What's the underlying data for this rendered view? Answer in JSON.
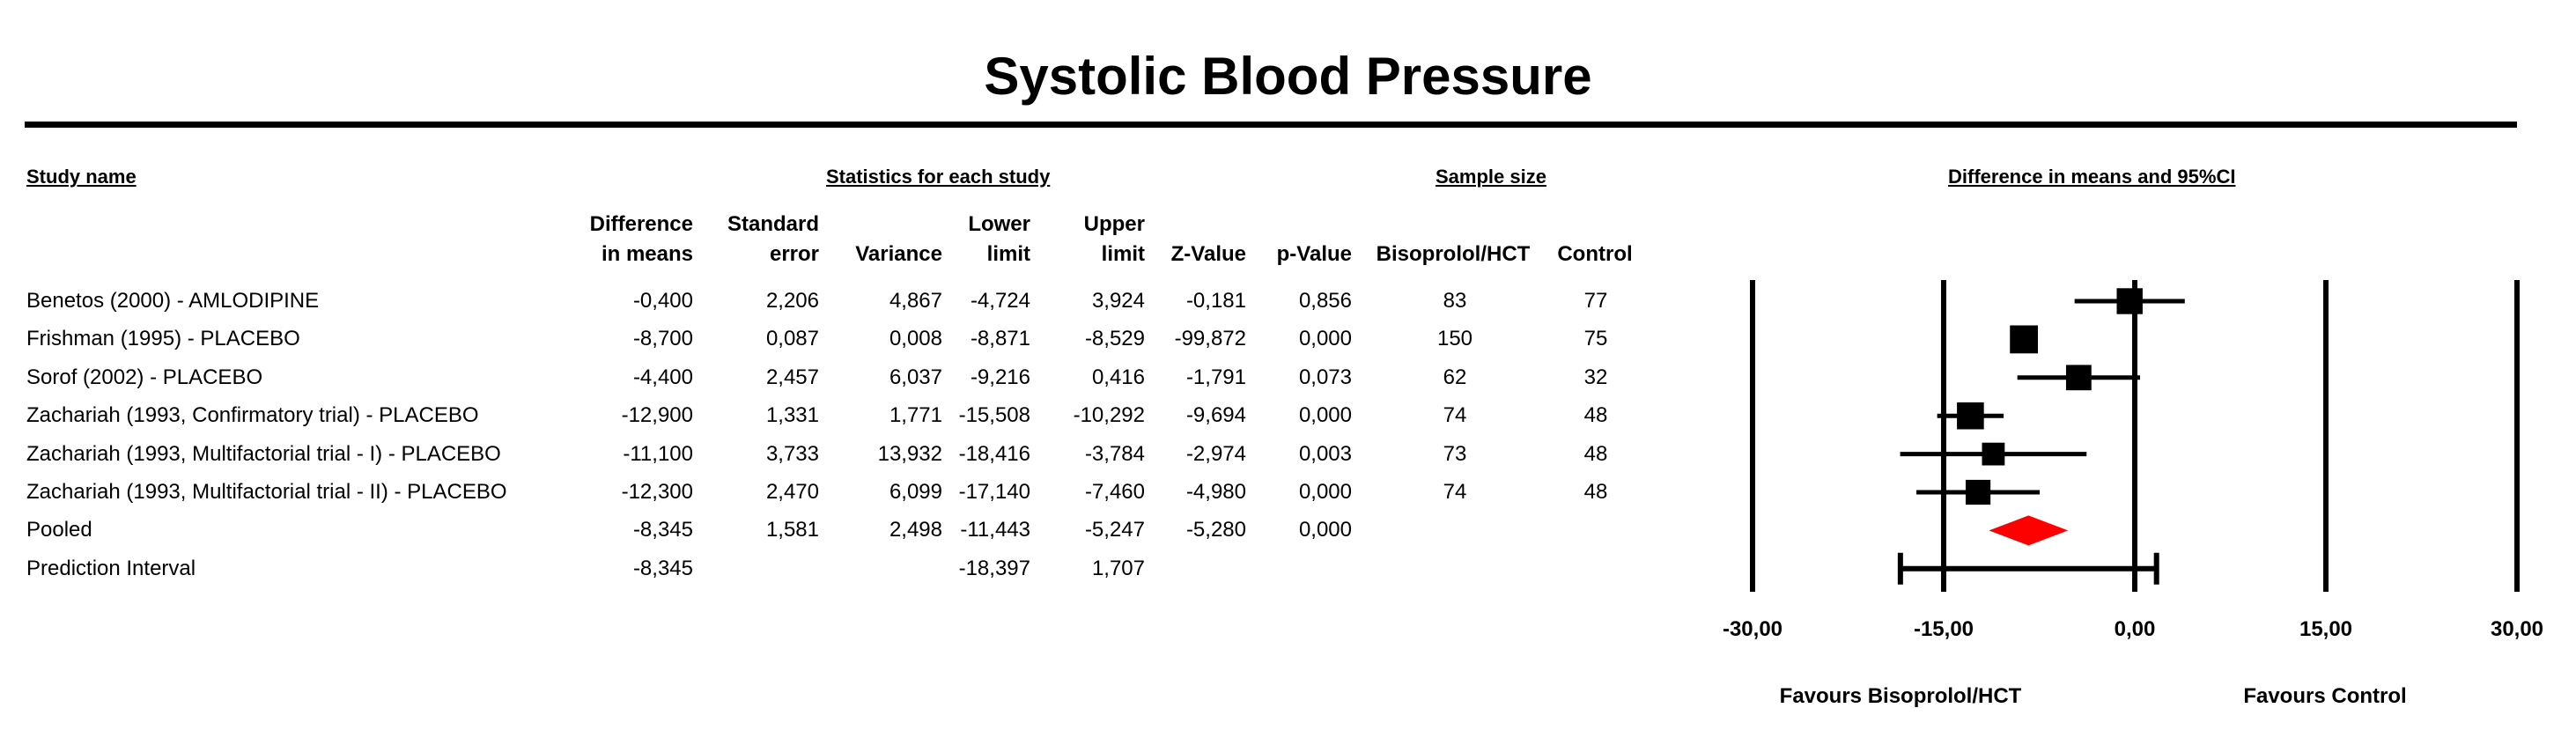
{
  "title": "Systolic Blood Pressure",
  "section_headers": {
    "study_name": "Study name",
    "statistics": "Statistics for each study",
    "sample_size": "Sample size",
    "plot": "Difference in means and 95%CI"
  },
  "column_headers": {
    "diff": [
      "Difference",
      "in means"
    ],
    "se": [
      "Standard",
      "error"
    ],
    "variance": "Variance",
    "lower": [
      "Lower",
      "limit"
    ],
    "upper": [
      "Upper",
      "limit"
    ],
    "z": "Z-Value",
    "p": "p-Value",
    "treat": "Bisoprolol/HCT",
    "control": "Control"
  },
  "rows": [
    {
      "name": "Benetos (2000) - AMLODIPINE",
      "diff": "-0,400",
      "se": "2,206",
      "var": "4,867",
      "lower": "-4,724",
      "upper": "3,924",
      "z": "-0,181",
      "p": "0,856",
      "n_treat": "83",
      "n_ctrl": "77"
    },
    {
      "name": "Frishman (1995) - PLACEBO",
      "diff": "-8,700",
      "se": "0,087",
      "var": "0,008",
      "lower": "-8,871",
      "upper": "-8,529",
      "z": "-99,872",
      "p": "0,000",
      "n_treat": "150",
      "n_ctrl": "75"
    },
    {
      "name": "Sorof (2002) - PLACEBO",
      "diff": "-4,400",
      "se": "2,457",
      "var": "6,037",
      "lower": "-9,216",
      "upper": "0,416",
      "z": "-1,791",
      "p": "0,073",
      "n_treat": "62",
      "n_ctrl": "32"
    },
    {
      "name": "Zachariah (1993, Confirmatory trial) - PLACEBO",
      "diff": "-12,900",
      "se": "1,331",
      "var": "1,771",
      "lower": "-15,508",
      "upper": "-10,292",
      "z": "-9,694",
      "p": "0,000",
      "n_treat": "74",
      "n_ctrl": "48"
    },
    {
      "name": "Zachariah (1993, Multifactorial trial - I) - PLACEBO",
      "diff": "-11,100",
      "se": "3,733",
      "var": "13,932",
      "lower": "-18,416",
      "upper": "-3,784",
      "z": "-2,974",
      "p": "0,003",
      "n_treat": "73",
      "n_ctrl": "48"
    },
    {
      "name": "Zachariah (1993, Multifactorial trial - II) - PLACEBO",
      "diff": "-12,300",
      "se": "2,470",
      "var": "6,099",
      "lower": "-17,140",
      "upper": "-7,460",
      "z": "-4,980",
      "p": "0,000",
      "n_treat": "74",
      "n_ctrl": "48"
    },
    {
      "name": "Pooled",
      "diff": "-8,345",
      "se": "1,581",
      "var": "2,498",
      "lower": "-11,443",
      "upper": "-5,247",
      "z": "-5,280",
      "p": "0,000",
      "n_treat": "",
      "n_ctrl": ""
    },
    {
      "name": "Prediction Interval",
      "diff": "-8,345",
      "se": "",
      "var": "",
      "lower": "-18,397",
      "upper": "1,707",
      "z": "",
      "p": "",
      "n_treat": "",
      "n_ctrl": ""
    }
  ],
  "chart_data": {
    "type": "forest",
    "xlim": [
      -30,
      30
    ],
    "ticks": [
      -30,
      -15,
      0,
      15,
      30
    ],
    "tick_labels": [
      "-30,00",
      "-15,00",
      "0,00",
      "15,00",
      "30,00"
    ],
    "xlabel_left": "Favours Bisoprolol/HCT",
    "xlabel_right": "Favours Control",
    "studies": [
      {
        "name": "Benetos (2000) - AMLODIPINE",
        "mean": -0.4,
        "lower": -4.724,
        "upper": 3.924,
        "weight": 0.19
      },
      {
        "name": "Frishman (1995) - PLACEBO",
        "mean": -8.7,
        "lower": -8.871,
        "upper": -8.529,
        "weight": 0.23
      },
      {
        "name": "Sorof (2002) - PLACEBO",
        "mean": -4.4,
        "lower": -9.216,
        "upper": 0.416,
        "weight": 0.18
      },
      {
        "name": "Zachariah (1993, Confirmatory trial) - PLACEBO",
        "mean": -12.9,
        "lower": -15.508,
        "upper": -10.292,
        "weight": 0.21
      },
      {
        "name": "Zachariah (1993, Multifactorial trial - I) - PLACEBO",
        "mean": -11.1,
        "lower": -18.416,
        "upper": -3.784,
        "weight": 0.13
      },
      {
        "name": "Zachariah (1993, Multifactorial trial - II) - PLACEBO",
        "mean": -12.3,
        "lower": -17.14,
        "upper": -7.46,
        "weight": 0.17
      }
    ],
    "pooled": {
      "mean": -8.345,
      "lower": -11.443,
      "upper": -5.247
    },
    "prediction_interval": {
      "mean": -8.345,
      "lower": -18.397,
      "upper": 1.707
    },
    "pooled_color": "#ff0000"
  }
}
